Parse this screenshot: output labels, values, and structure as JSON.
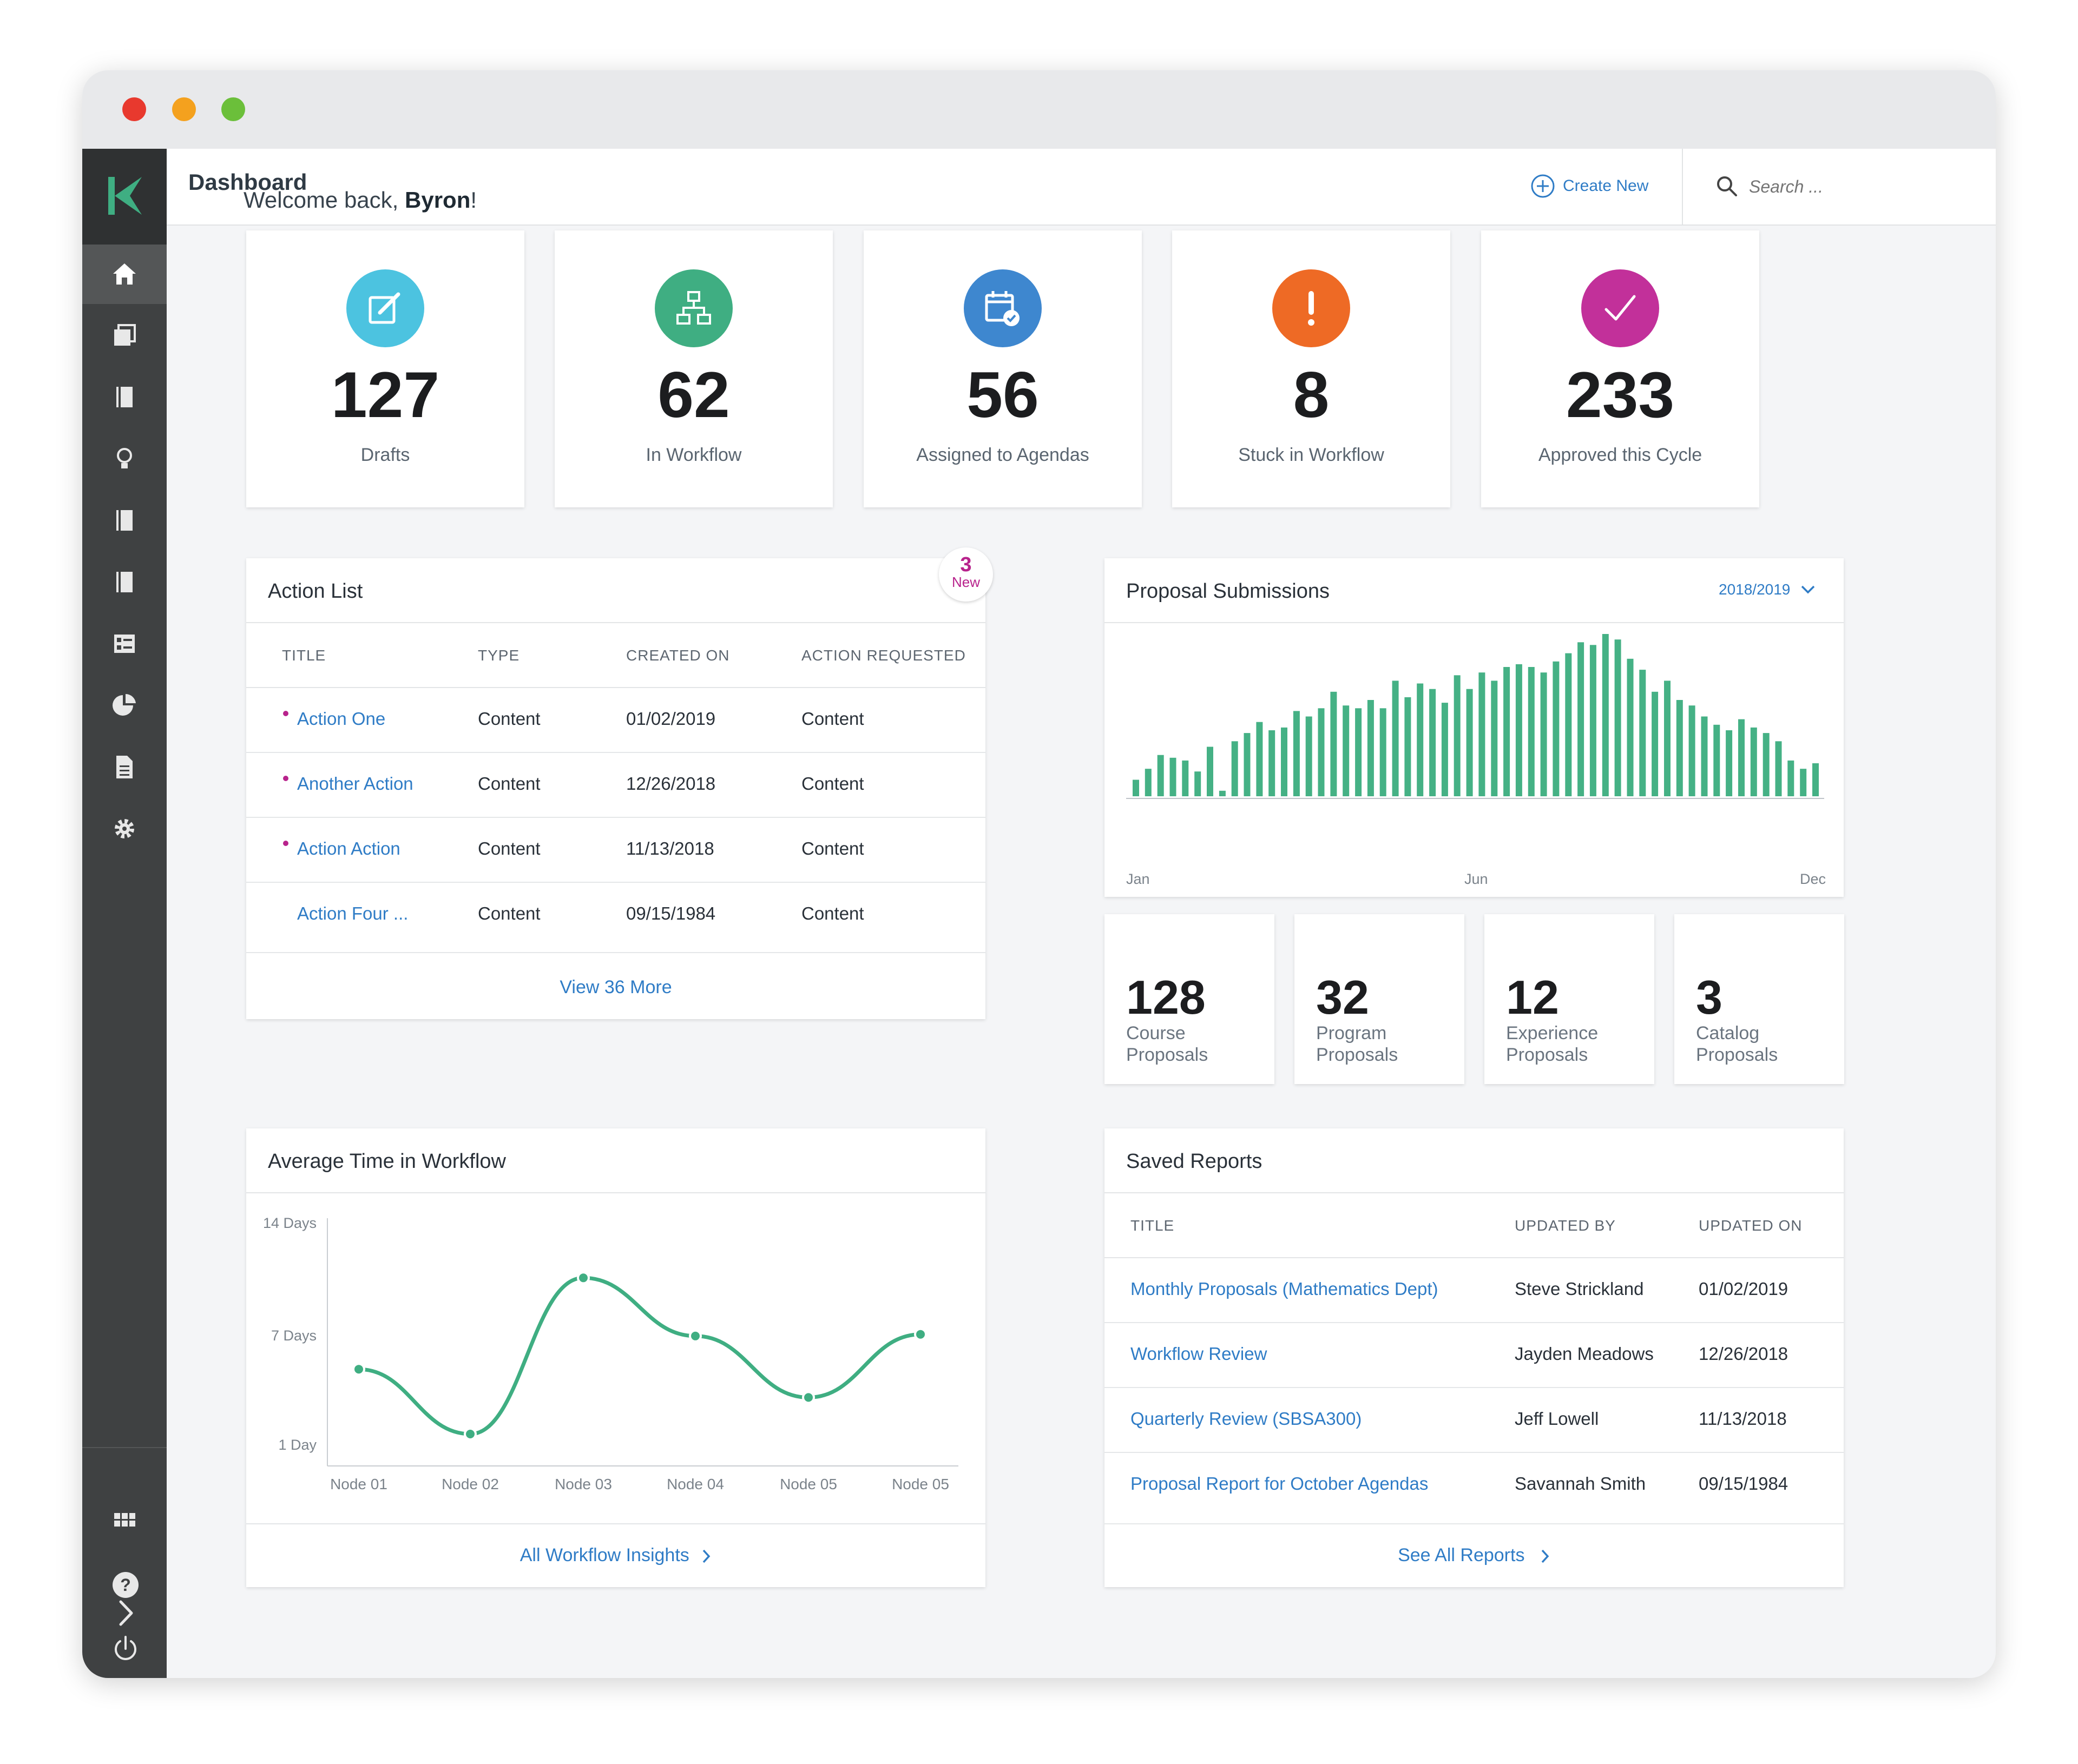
{
  "app": {
    "page_title": "Dashboard"
  },
  "header": {
    "create_new": "Create New",
    "search_placeholder": "Search ..."
  },
  "welcome": {
    "prefix": "Welcome back, ",
    "name": "Byron",
    "suffix": "!"
  },
  "stats": [
    {
      "value": "127",
      "label": "Drafts",
      "color": "#4cc3e0",
      "icon": "edit-icon"
    },
    {
      "value": "62",
      "label": "In Workflow",
      "color": "#3fae82",
      "icon": "workflow-icon"
    },
    {
      "value": "56",
      "label": "Assigned to Agendas",
      "color": "#3e87cf",
      "icon": "calendar-check-icon"
    },
    {
      "value": "8",
      "label": "Stuck in Workflow",
      "color": "#ee6a25",
      "icon": "alert-icon"
    },
    {
      "value": "233",
      "label": "Approved this Cycle",
      "color": "#c2309a",
      "icon": "check-icon"
    }
  ],
  "action_list": {
    "title": "Action List",
    "badge_count": "3",
    "badge_label": "New",
    "columns": [
      "TITLE",
      "TYPE",
      "CREATED ON",
      "ACTION REQUESTED"
    ],
    "rows": [
      {
        "title": "Action One",
        "type": "Content",
        "created": "01/02/2019",
        "action": "Content",
        "new": true
      },
      {
        "title": "Another Action",
        "type": "Content",
        "created": "12/26/2018",
        "action": "Content",
        "new": true
      },
      {
        "title": "Action Action",
        "type": "Content",
        "created": "11/13/2018",
        "action": "Content",
        "new": true
      },
      {
        "title": "Action Four ...",
        "type": "Content",
        "created": "09/15/1984",
        "action": "Content",
        "new": false
      }
    ],
    "view_more": "View 36 More"
  },
  "proposal_submissions": {
    "title": "Proposal Submissions",
    "year": "2018/2019",
    "x_labels": [
      "Jan",
      "Jun",
      "Dec"
    ],
    "chart_data": {
      "type": "bar",
      "values": [
        12,
        20,
        30,
        28,
        26,
        18,
        36,
        4,
        40,
        46,
        54,
        48,
        50,
        62,
        58,
        64,
        76,
        66,
        64,
        70,
        64,
        84,
        72,
        82,
        78,
        68,
        88,
        78,
        90,
        84,
        94,
        96,
        94,
        90,
        98,
        104,
        112,
        110,
        118,
        114,
        100,
        92,
        76,
        84,
        70,
        66,
        58,
        52,
        48,
        56,
        50,
        46,
        40,
        26,
        20,
        24
      ]
    }
  },
  "mini_stats": [
    {
      "value": "128",
      "label": "Course Proposals"
    },
    {
      "value": "32",
      "label": "Program Proposals"
    },
    {
      "value": "12",
      "label": "Experience Proposals"
    },
    {
      "value": "3",
      "label": "Catalog Proposals"
    }
  ],
  "avg_time": {
    "title": "Average Time in Workflow",
    "footer": "All Workflow Insights",
    "chart_data": {
      "type": "line",
      "categories": [
        "Node 01",
        "Node 02",
        "Node 03",
        "Node 04",
        "Node 05",
        "Node 05"
      ],
      "values": [
        5.3,
        1.4,
        10.8,
        7.3,
        3.6,
        7.4
      ],
      "y_ticks": [
        "14 Days",
        "7 Days",
        "1 Day"
      ],
      "ylim": [
        0,
        14
      ],
      "color": "#3fae82"
    }
  },
  "saved_reports": {
    "title": "Saved Reports",
    "columns": [
      "TITLE",
      "UPDATED BY",
      "UPDATED ON"
    ],
    "rows": [
      {
        "title": "Monthly Proposals (Mathematics Dept)",
        "by": "Steve Strickland",
        "on": "01/02/2019"
      },
      {
        "title": "Workflow Review",
        "by": "Jayden Meadows",
        "on": "12/26/2018"
      },
      {
        "title": "Quarterly Review (SBSA300)",
        "by": "Jeff Lowell",
        "on": "11/13/2018"
      },
      {
        "title": "Proposal Report for October Agendas",
        "by": "Savannah Smith",
        "on": "09/15/1984"
      }
    ],
    "footer": "See All Reports"
  },
  "sidebar": {
    "items": [
      "home-icon",
      "library-icon",
      "book-icon",
      "lightbulb-icon",
      "book-icon",
      "book-icon",
      "list-icon",
      "pie-chart-icon",
      "document-icon",
      "gear-icon"
    ],
    "bottom": [
      "apps-grid-icon",
      "help-icon",
      "power-icon",
      "chevron-right-icon"
    ]
  }
}
